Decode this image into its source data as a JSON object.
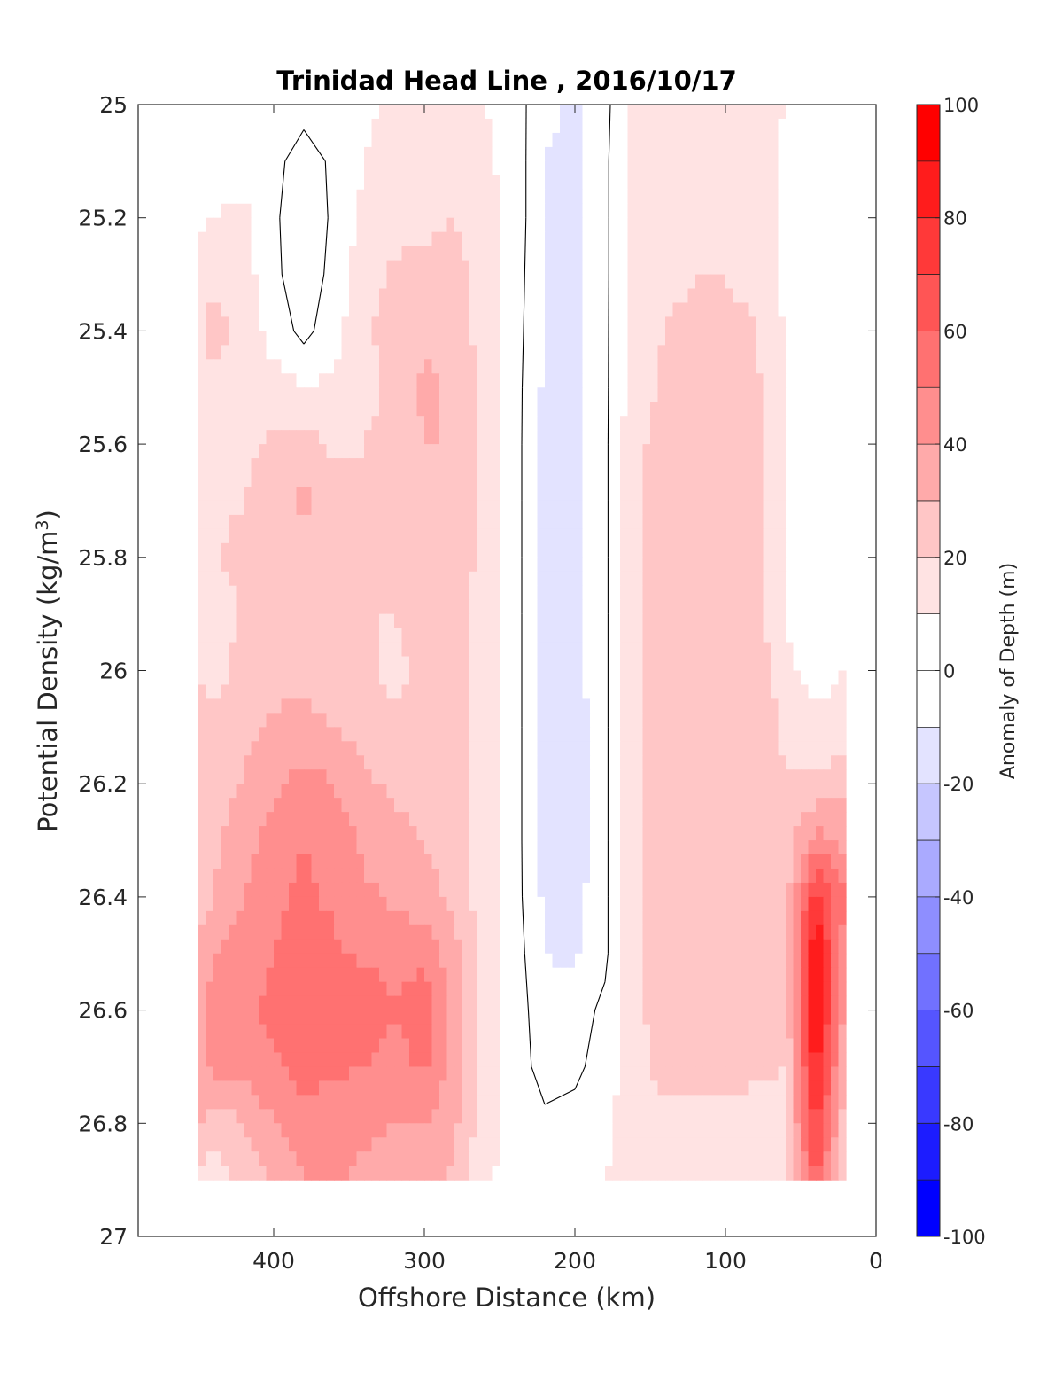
{
  "chart_data": {
    "type": "heatmap",
    "subtype": "filled-contour",
    "title": "Trinidad Head Line , 2016/10/17",
    "xlabel": "Offshore Distance (km)",
    "ylabel": "Potential Density (kg/m",
    "ylabel_sup": "3",
    "ylabel_close": ")",
    "colorbar_label": "Anomaly of Depth (m)",
    "xlim": [
      490,
      0
    ],
    "ylim": [
      25,
      27
    ],
    "x_reversed": true,
    "y_reversed": true,
    "xticks": [
      400,
      300,
      200,
      100,
      0
    ],
    "xtick_labels": [
      "400",
      "300",
      "200",
      "100",
      "0"
    ],
    "yticks": [
      25,
      25.2,
      25.4,
      25.6,
      25.8,
      26,
      26.2,
      26.4,
      26.6,
      26.8,
      27
    ],
    "ytick_labels": [
      "25",
      "25.2",
      "25.4",
      "25.6",
      "25.8",
      "26",
      "26.2",
      "26.4",
      "26.6",
      "26.8",
      "27"
    ],
    "colorbar_range": [
      -100,
      100
    ],
    "colorbar_step": 10,
    "colorbar_ticks": [
      100,
      80,
      60,
      40,
      20,
      0,
      -20,
      -40,
      -60,
      -80,
      -100
    ],
    "colorbar_tick_labels": [
      "100",
      "80",
      "60",
      "40",
      "20",
      "0",
      "-20",
      "-40",
      "-60",
      "-80",
      "-100"
    ],
    "colormap": {
      "negative": "#0000ff",
      "zero": "#ffffff",
      "positive": "#ff0000"
    },
    "data_extent": {
      "x": [
        450,
        20
      ],
      "y": [
        25,
        26.9
      ]
    },
    "x": [
      450,
      440,
      420,
      400,
      380,
      360,
      340,
      320,
      300,
      280,
      260,
      240,
      220,
      200,
      180,
      160,
      140,
      120,
      100,
      80,
      60,
      40,
      20
    ],
    "y": [
      25,
      25.1,
      25.2,
      25.3,
      25.4,
      25.5,
      25.6,
      25.7,
      25.8,
      25.9,
      26,
      26.1,
      26.2,
      26.3,
      26.4,
      26.5,
      26.6,
      26.7,
      26.8,
      26.9
    ],
    "z_rows": [
      [
        2,
        3,
        5,
        5,
        4,
        6,
        8,
        12,
        15,
        14,
        10,
        5,
        -8,
        -12,
        -3,
        14,
        14,
        14,
        15,
        14,
        10,
        5,
        3
      ],
      [
        4,
        5,
        6,
        3,
        -5,
        2,
        10,
        14,
        14,
        15,
        12,
        6,
        -10,
        -12,
        -2,
        14,
        14,
        15,
        16,
        14,
        8,
        4,
        3
      ],
      [
        8,
        10,
        12,
        2,
        -8,
        2,
        13,
        16,
        18,
        20,
        14,
        6,
        -10,
        -12,
        -2,
        14,
        16,
        18,
        18,
        15,
        8,
        3,
        6
      ],
      [
        15,
        18,
        14,
        3,
        -8,
        4,
        16,
        22,
        22,
        24,
        16,
        6,
        -12,
        -12,
        -2,
        14,
        18,
        20,
        20,
        16,
        8,
        2,
        8
      ],
      [
        16,
        24,
        16,
        6,
        -3,
        6,
        18,
        24,
        28,
        26,
        16,
        5,
        -12,
        -12,
        -2,
        15,
        20,
        22,
        24,
        20,
        9,
        0,
        8
      ],
      [
        18,
        18,
        16,
        14,
        10,
        12,
        18,
        22,
        32,
        28,
        16,
        4,
        -12,
        -13,
        -2,
        16,
        22,
        26,
        26,
        22,
        10,
        0,
        8
      ],
      [
        18,
        16,
        18,
        22,
        24,
        18,
        20,
        22,
        30,
        30,
        16,
        4,
        -13,
        -13,
        -2,
        18,
        24,
        28,
        26,
        24,
        10,
        0,
        9
      ],
      [
        20,
        18,
        20,
        26,
        32,
        24,
        20,
        22,
        28,
        30,
        16,
        4,
        -13,
        -13,
        -2,
        18,
        24,
        26,
        26,
        24,
        10,
        0,
        9
      ],
      [
        20,
        20,
        22,
        24,
        28,
        24,
        22,
        22,
        26,
        28,
        16,
        4,
        -13,
        -13,
        -2,
        18,
        24,
        26,
        26,
        24,
        10,
        0,
        8
      ],
      [
        20,
        14,
        22,
        24,
        26,
        24,
        20,
        20,
        24,
        26,
        14,
        4,
        -13,
        -13,
        -2,
        18,
        24,
        26,
        26,
        24,
        10,
        0,
        6
      ],
      [
        20,
        16,
        24,
        26,
        28,
        26,
        22,
        18,
        22,
        24,
        14,
        4,
        -13,
        -14,
        -2,
        18,
        24,
        26,
        28,
        28,
        12,
        6,
        10
      ],
      [
        22,
        24,
        28,
        32,
        32,
        30,
        26,
        22,
        24,
        24,
        14,
        4,
        -13,
        -16,
        -2,
        18,
        24,
        26,
        28,
        30,
        16,
        12,
        14
      ],
      [
        22,
        26,
        30,
        38,
        44,
        40,
        32,
        28,
        26,
        24,
        14,
        4,
        -13,
        -20,
        -2,
        18,
        24,
        26,
        26,
        30,
        22,
        22,
        28
      ],
      [
        24,
        28,
        36,
        44,
        50,
        46,
        38,
        34,
        30,
        26,
        14,
        4,
        -13,
        -18,
        -2,
        18,
        24,
        26,
        26,
        26,
        24,
        45,
        35
      ],
      [
        24,
        30,
        40,
        48,
        52,
        48,
        42,
        38,
        34,
        28,
        14,
        4,
        -12,
        -14,
        -2,
        18,
        24,
        26,
        26,
        26,
        25,
        75,
        50
      ],
      [
        32,
        40,
        46,
        50,
        56,
        52,
        48,
        46,
        48,
        34,
        16,
        5,
        -10,
        -12,
        -2,
        18,
        24,
        26,
        26,
        26,
        24,
        92,
        40
      ],
      [
        36,
        44,
        48,
        52,
        58,
        54,
        58,
        50,
        56,
        38,
        16,
        5,
        -6,
        -4,
        2,
        18,
        24,
        26,
        26,
        26,
        22,
        95,
        35
      ],
      [
        36,
        42,
        44,
        48,
        56,
        52,
        50,
        46,
        52,
        36,
        16,
        5,
        -4,
        -2,
        4,
        18,
        22,
        22,
        22,
        22,
        20,
        85,
        28
      ],
      [
        32,
        24,
        30,
        40,
        44,
        44,
        42,
        40,
        40,
        32,
        14,
        6,
        2,
        3,
        8,
        16,
        18,
        18,
        18,
        16,
        18,
        75,
        22
      ],
      [
        16,
        16,
        24,
        32,
        40,
        42,
        38,
        36,
        36,
        28,
        12,
        6,
        4,
        6,
        10,
        14,
        14,
        14,
        14,
        14,
        14,
        62,
        18
      ]
    ],
    "contour_line_levels": [
      0
    ]
  }
}
